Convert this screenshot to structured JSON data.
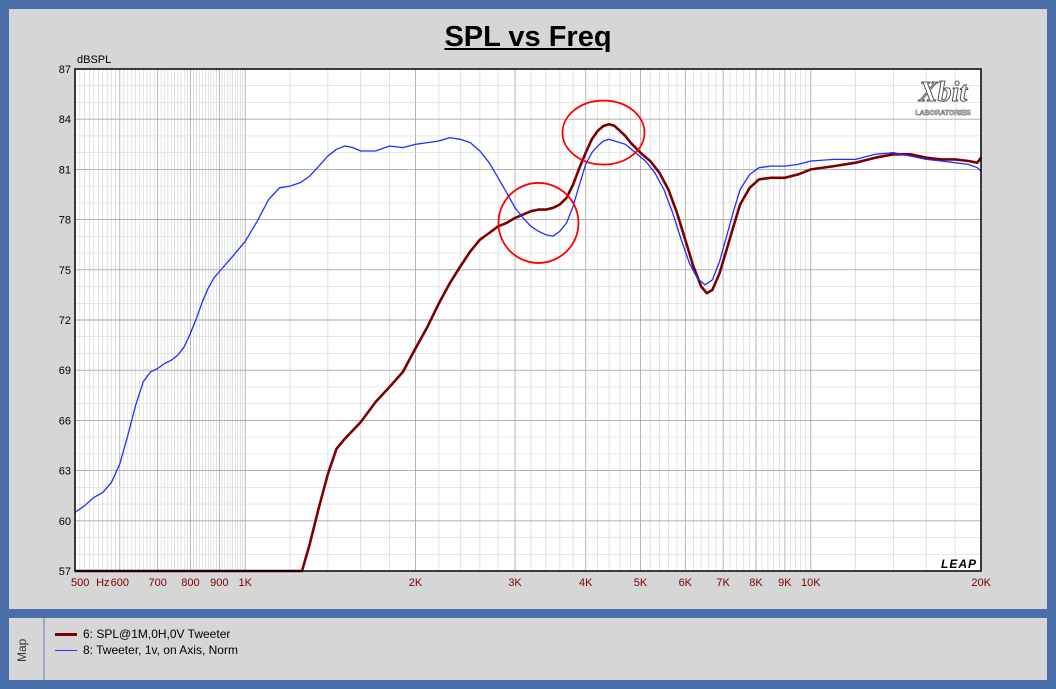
{
  "chart_data": {
    "type": "line",
    "title": "SPL vs Freq",
    "ylabel": "dBSPL",
    "xlabel": "",
    "xscale": "log",
    "xlim": [
      500,
      20000
    ],
    "ylim": [
      57,
      87
    ],
    "yticks": [
      57,
      60,
      63,
      66,
      69,
      72,
      75,
      78,
      81,
      84,
      87
    ],
    "xtick_labels": [
      {
        "f": 500,
        "label": "500"
      },
      {
        "f": 560,
        "label": "Hz"
      },
      {
        "f": 600,
        "label": "600"
      },
      {
        "f": 700,
        "label": "700"
      },
      {
        "f": 800,
        "label": "800"
      },
      {
        "f": 900,
        "label": "900"
      },
      {
        "f": 1000,
        "label": "1K"
      },
      {
        "f": 2000,
        "label": "2K"
      },
      {
        "f": 3000,
        "label": "3K"
      },
      {
        "f": 4000,
        "label": "4K"
      },
      {
        "f": 5000,
        "label": "5K"
      },
      {
        "f": 6000,
        "label": "6K"
      },
      {
        "f": 7000,
        "label": "7K"
      },
      {
        "f": 8000,
        "label": "8K"
      },
      {
        "f": 9000,
        "label": "9K"
      },
      {
        "f": 10000,
        "label": "10K"
      },
      {
        "f": 20000,
        "label": "20K"
      }
    ],
    "grid": true,
    "series": [
      {
        "name": "6: SPL@1M,0H,0V Tweeter",
        "color": "#7b0000",
        "points": [
          [
            500,
            57
          ],
          [
            1100,
            57
          ],
          [
            1260,
            57
          ],
          [
            1300,
            58.6
          ],
          [
            1350,
            60.8
          ],
          [
            1400,
            62.8
          ],
          [
            1450,
            64.3
          ],
          [
            1500,
            64.9
          ],
          [
            1600,
            65.9
          ],
          [
            1700,
            67.1
          ],
          [
            1800,
            68
          ],
          [
            1900,
            68.9
          ],
          [
            2000,
            70.3
          ],
          [
            2100,
            71.6
          ],
          [
            2200,
            73
          ],
          [
            2300,
            74.2
          ],
          [
            2400,
            75.2
          ],
          [
            2500,
            76.1
          ],
          [
            2600,
            76.8
          ],
          [
            2700,
            77.2
          ],
          [
            2800,
            77.6
          ],
          [
            2900,
            77.8
          ],
          [
            3000,
            78.1
          ],
          [
            3100,
            78.3
          ],
          [
            3200,
            78.5
          ],
          [
            3300,
            78.6
          ],
          [
            3400,
            78.6
          ],
          [
            3500,
            78.7
          ],
          [
            3600,
            78.9
          ],
          [
            3700,
            79.3
          ],
          [
            3800,
            80.1
          ],
          [
            3900,
            81.1
          ],
          [
            4000,
            82
          ],
          [
            4100,
            82.8
          ],
          [
            4200,
            83.3
          ],
          [
            4300,
            83.6
          ],
          [
            4400,
            83.7
          ],
          [
            4500,
            83.6
          ],
          [
            4600,
            83.3
          ],
          [
            4700,
            83
          ],
          [
            4800,
            82.6
          ],
          [
            5000,
            82
          ],
          [
            5200,
            81.5
          ],
          [
            5400,
            80.8
          ],
          [
            5600,
            79.8
          ],
          [
            5800,
            78.4
          ],
          [
            6000,
            76.8
          ],
          [
            6200,
            75.2
          ],
          [
            6400,
            74
          ],
          [
            6550,
            73.6
          ],
          [
            6700,
            73.8
          ],
          [
            6900,
            74.8
          ],
          [
            7100,
            76.2
          ],
          [
            7300,
            77.6
          ],
          [
            7500,
            78.9
          ],
          [
            7800,
            79.9
          ],
          [
            8100,
            80.4
          ],
          [
            8500,
            80.5
          ],
          [
            9000,
            80.5
          ],
          [
            9500,
            80.7
          ],
          [
            10000,
            81
          ],
          [
            11000,
            81.2
          ],
          [
            12000,
            81.4
          ],
          [
            13000,
            81.7
          ],
          [
            14000,
            81.9
          ],
          [
            15000,
            81.9
          ],
          [
            16000,
            81.7
          ],
          [
            17000,
            81.6
          ],
          [
            18000,
            81.6
          ],
          [
            19000,
            81.5
          ],
          [
            19700,
            81.4
          ],
          [
            20000,
            81.7
          ]
        ]
      },
      {
        "name": "8: Tweeter, 1v, on Axis, Norm",
        "color": "#1e2fff",
        "points": [
          [
            500,
            60.5
          ],
          [
            520,
            60.9
          ],
          [
            540,
            61.4
          ],
          [
            560,
            61.7
          ],
          [
            580,
            62.3
          ],
          [
            600,
            63.4
          ],
          [
            620,
            65.1
          ],
          [
            640,
            66.9
          ],
          [
            660,
            68.3
          ],
          [
            680,
            68.9
          ],
          [
            700,
            69.1
          ],
          [
            720,
            69.4
          ],
          [
            740,
            69.6
          ],
          [
            760,
            69.9
          ],
          [
            780,
            70.4
          ],
          [
            800,
            71.2
          ],
          [
            820,
            72.1
          ],
          [
            840,
            73.1
          ],
          [
            860,
            73.9
          ],
          [
            880,
            74.5
          ],
          [
            900,
            74.9
          ],
          [
            950,
            75.8
          ],
          [
            1000,
            76.7
          ],
          [
            1050,
            77.9
          ],
          [
            1100,
            79.2
          ],
          [
            1150,
            79.9
          ],
          [
            1200,
            80
          ],
          [
            1250,
            80.2
          ],
          [
            1300,
            80.6
          ],
          [
            1350,
            81.2
          ],
          [
            1400,
            81.8
          ],
          [
            1450,
            82.2
          ],
          [
            1500,
            82.4
          ],
          [
            1550,
            82.3
          ],
          [
            1600,
            82.1
          ],
          [
            1700,
            82.1
          ],
          [
            1800,
            82.4
          ],
          [
            1900,
            82.3
          ],
          [
            2000,
            82.5
          ],
          [
            2100,
            82.6
          ],
          [
            2200,
            82.7
          ],
          [
            2300,
            82.9
          ],
          [
            2400,
            82.8
          ],
          [
            2500,
            82.6
          ],
          [
            2600,
            82.1
          ],
          [
            2700,
            81.4
          ],
          [
            2800,
            80.5
          ],
          [
            2900,
            79.6
          ],
          [
            3000,
            78.7
          ],
          [
            3100,
            78.1
          ],
          [
            3200,
            77.6
          ],
          [
            3300,
            77.3
          ],
          [
            3400,
            77.1
          ],
          [
            3500,
            77
          ],
          [
            3600,
            77.3
          ],
          [
            3700,
            77.8
          ],
          [
            3800,
            78.8
          ],
          [
            3900,
            80.1
          ],
          [
            4000,
            81.3
          ],
          [
            4100,
            82
          ],
          [
            4200,
            82.4
          ],
          [
            4300,
            82.7
          ],
          [
            4400,
            82.8
          ],
          [
            4500,
            82.7
          ],
          [
            4700,
            82.5
          ],
          [
            4900,
            82
          ],
          [
            5100,
            81.5
          ],
          [
            5300,
            80.8
          ],
          [
            5500,
            79.8
          ],
          [
            5700,
            78.4
          ],
          [
            5900,
            76.8
          ],
          [
            6100,
            75.4
          ],
          [
            6300,
            74.5
          ],
          [
            6500,
            74.1
          ],
          [
            6700,
            74.4
          ],
          [
            6900,
            75.5
          ],
          [
            7100,
            77
          ],
          [
            7300,
            78.5
          ],
          [
            7500,
            79.8
          ],
          [
            7800,
            80.7
          ],
          [
            8100,
            81.1
          ],
          [
            8500,
            81.2
          ],
          [
            9000,
            81.2
          ],
          [
            9500,
            81.3
          ],
          [
            10000,
            81.5
          ],
          [
            11000,
            81.6
          ],
          [
            12000,
            81.6
          ],
          [
            13000,
            81.9
          ],
          [
            14000,
            82
          ],
          [
            15000,
            81.8
          ],
          [
            16000,
            81.6
          ],
          [
            17000,
            81.5
          ],
          [
            18000,
            81.4
          ],
          [
            19000,
            81.3
          ],
          [
            19700,
            81.1
          ],
          [
            20000,
            80.9
          ]
        ]
      }
    ],
    "annotations": [
      {
        "type": "circle",
        "color": "#ff0000",
        "near_freq": 3300,
        "near_db": 77.8
      },
      {
        "type": "circle",
        "color": "#ff0000",
        "near_freq": 4300,
        "near_db": 83.2
      }
    ]
  },
  "logo": {
    "text_main": "Xbit",
    "text_sub": "LABORATORIES"
  },
  "watermark": "LEAP",
  "map_tab_label": "Map",
  "legend": [
    {
      "label": "6: SPL@1M,0H,0V Tweeter",
      "color": "#7b0000"
    },
    {
      "label": "8: Tweeter, 1v, on Axis, Norm",
      "color": "#1e2fff"
    }
  ]
}
